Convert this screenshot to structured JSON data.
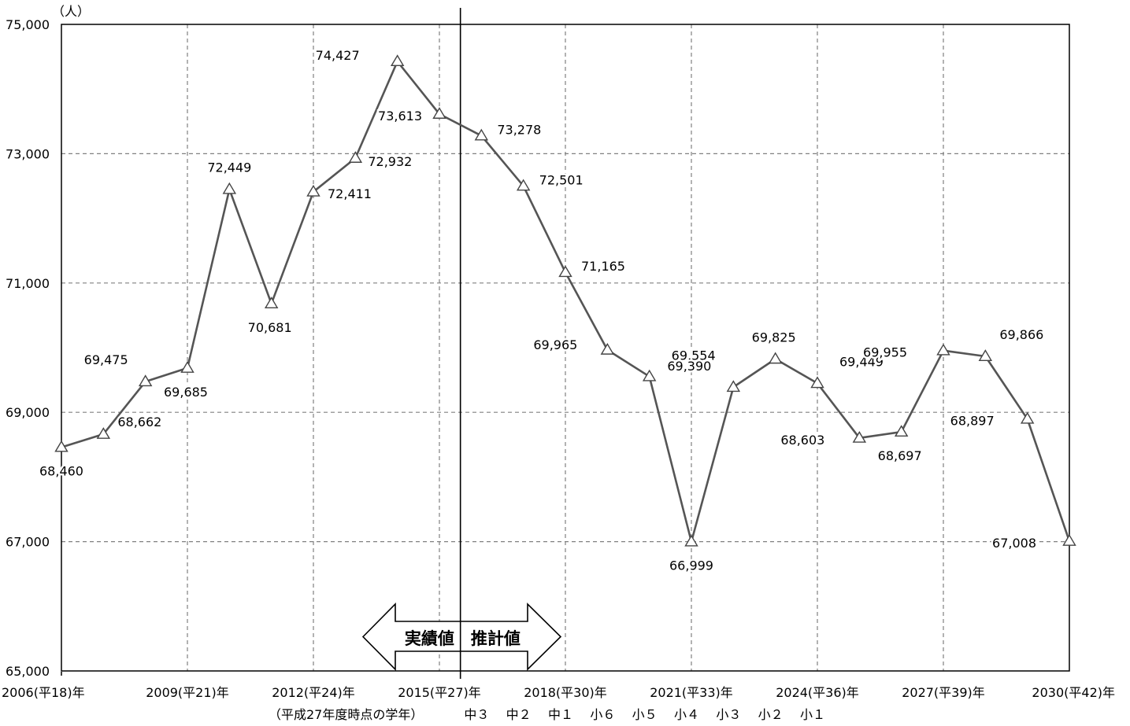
{
  "chart_data": {
    "type": "line",
    "unit_label": "（人）",
    "ylim": [
      65000,
      75000
    ],
    "y_ticks": [
      65000,
      67000,
      69000,
      71000,
      73000,
      75000
    ],
    "y_tick_labels": [
      "65,000",
      "67,000",
      "69,000",
      "71,000",
      "73,000",
      "75,000"
    ],
    "xlim": [
      2006,
      2030
    ],
    "x_ticks": [
      2006,
      2009,
      2012,
      2015,
      2018,
      2021,
      2024,
      2027,
      2030
    ],
    "x_tick_labels": [
      "2006(平18)年",
      "2009(平21)年",
      "2012(平24)年",
      "2015(平27)年",
      "2018(平30)年",
      "2021(平33)年",
      "2024(平36)年",
      "2027(平39)年",
      "2030(平42)年"
    ],
    "grid": true,
    "series": [
      {
        "x": [
          2006,
          2007,
          2008,
          2009,
          2010,
          2011,
          2012,
          2013,
          2014,
          2015,
          2016,
          2017,
          2018,
          2019,
          2020,
          2021,
          2022,
          2023,
          2024,
          2025,
          2026,
          2027,
          2028,
          2029,
          2030
        ],
        "values": [
          68460,
          68662,
          69475,
          69685,
          72449,
          70681,
          72411,
          72932,
          74427,
          73613,
          73278,
          72501,
          71165,
          69965,
          69554,
          66999,
          69390,
          69825,
          69449,
          68603,
          68697,
          69955,
          69866,
          68897,
          67008
        ],
        "labels": [
          "68,460",
          "68,662",
          "69,475",
          "69,685",
          "72,449",
          "70,681",
          "72,411",
          "72,932",
          "74,427",
          "73,613",
          "73,278",
          "72,501",
          "71,165",
          "69,965",
          "69,554",
          "66,999",
          "69,390",
          "69,825",
          "69,449",
          "68,603",
          "68,697",
          "69,955",
          "69,866",
          "68,897",
          "67,008"
        ]
      }
    ],
    "divider_year": 2015.5,
    "annotation_left": "実績値",
    "annotation_right": "推計値",
    "grade_row_label": "（平成27年度時点の学年）",
    "grade_labels": [
      {
        "x": 2016,
        "text": "中３"
      },
      {
        "x": 2017,
        "text": "中２"
      },
      {
        "x": 2018,
        "text": "中１"
      },
      {
        "x": 2019,
        "text": "小６"
      },
      {
        "x": 2020,
        "text": "小５"
      },
      {
        "x": 2021,
        "text": "小４"
      },
      {
        "x": 2022,
        "text": "小３"
      },
      {
        "x": 2023,
        "text": "小２"
      },
      {
        "x": 2024,
        "text": "小１"
      }
    ],
    "line_color": "#555555",
    "grid_color": "#808080"
  }
}
